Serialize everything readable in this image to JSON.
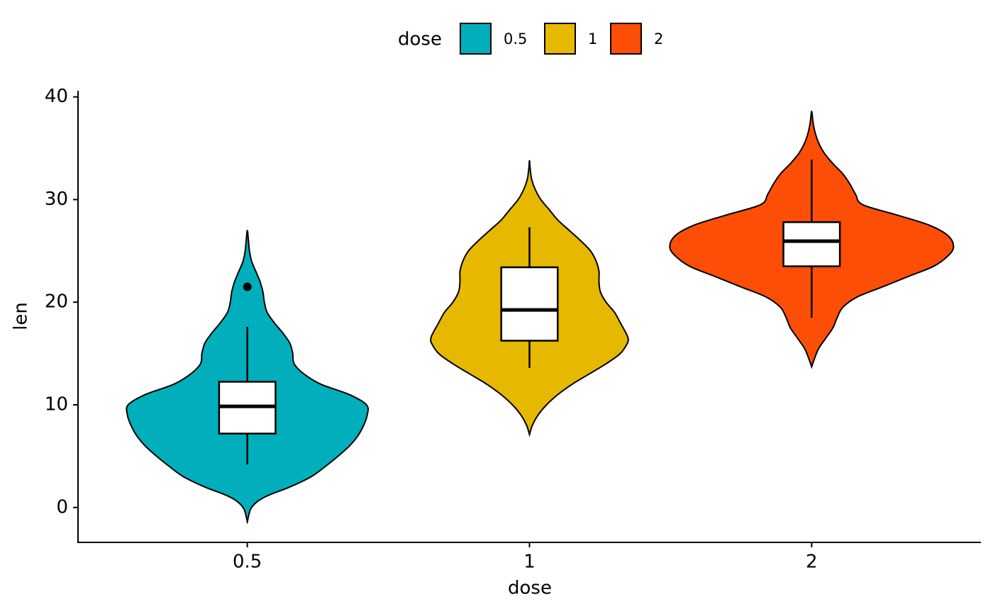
{
  "chart_data": {
    "type": "violin",
    "xlabel": "dose",
    "ylabel": "len",
    "legend_title": "dose",
    "legend_position": "top",
    "categories": [
      "0.5",
      "1",
      "2"
    ],
    "ylim": [
      -3.4,
      40.6
    ],
    "yticks": [
      0,
      10,
      20,
      30,
      40
    ],
    "series": [
      {
        "name": "0.5",
        "color": "#00AFBB",
        "violin": {
          "y": [
            -1.4,
            0,
            1,
            2,
            3,
            4,
            5,
            6,
            7,
            8,
            9,
            10,
            11,
            12,
            13,
            14,
            15,
            16,
            17,
            18,
            19,
            20,
            21,
            22,
            23,
            24,
            25,
            26,
            27
          ],
          "density": [
            0,
            0.03,
            0.12,
            0.3,
            0.45,
            0.55,
            0.64,
            0.72,
            0.78,
            0.82,
            0.845,
            0.84,
            0.72,
            0.52,
            0.4,
            0.33,
            0.32,
            0.3,
            0.25,
            0.19,
            0.14,
            0.12,
            0.11,
            0.09,
            0.06,
            0.03,
            0.015,
            0.008,
            0
          ]
        },
        "box": {
          "whisker_low": 4.2,
          "q1": 7.2,
          "median": 9.85,
          "q3": 12.25,
          "whisker_high": 17.6
        },
        "outliers": [
          21.5
        ]
      },
      {
        "name": "1",
        "color": "#E7B800",
        "violin": {
          "y": [
            7.1,
            8,
            9,
            10,
            11,
            12,
            13,
            14,
            15,
            16,
            16.5,
            17,
            18,
            19,
            20,
            21,
            22,
            23,
            24,
            25,
            26,
            27,
            28,
            29,
            30,
            31,
            32,
            33,
            33.8
          ],
          "density": [
            0,
            0.02,
            0.06,
            0.12,
            0.2,
            0.3,
            0.42,
            0.54,
            0.64,
            0.69,
            0.695,
            0.68,
            0.64,
            0.6,
            0.54,
            0.5,
            0.49,
            0.49,
            0.47,
            0.43,
            0.36,
            0.28,
            0.2,
            0.14,
            0.08,
            0.04,
            0.015,
            0.005,
            0
          ]
        },
        "box": {
          "whisker_low": 13.6,
          "q1": 16.25,
          "median": 19.25,
          "q3": 23.4,
          "whisker_high": 27.3
        },
        "outliers": []
      },
      {
        "name": "2",
        "color": "#FC4E07",
        "violin": {
          "y": [
            13.7,
            14.5,
            15.5,
            16.5,
            17.5,
            18.5,
            19.5,
            20.5,
            21.5,
            22.5,
            23.5,
            24.5,
            25.4,
            26.5,
            27.5,
            28.5,
            29.5,
            30.5,
            31.5,
            32.5,
            33.5,
            34.5,
            35.5,
            36.5,
            37.5,
            38.6
          ],
          "density": [
            0,
            0.02,
            0.05,
            0.1,
            0.15,
            0.18,
            0.22,
            0.32,
            0.5,
            0.68,
            0.86,
            0.96,
            1.0,
            0.96,
            0.83,
            0.6,
            0.36,
            0.31,
            0.27,
            0.22,
            0.15,
            0.09,
            0.05,
            0.025,
            0.01,
            0
          ]
        },
        "box": {
          "whisker_low": 18.5,
          "q1": 23.5,
          "median": 25.95,
          "q3": 27.8,
          "whisker_high": 33.9
        },
        "outliers": []
      }
    ]
  }
}
